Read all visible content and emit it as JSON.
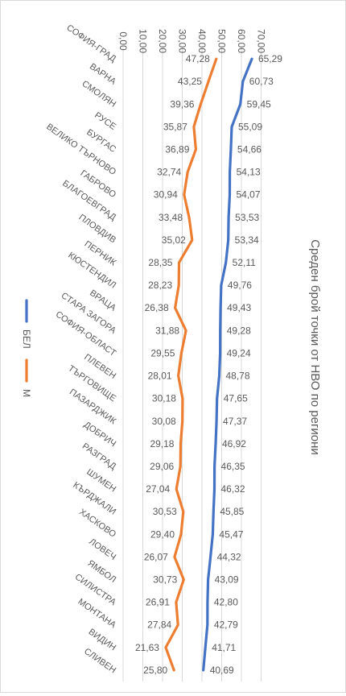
{
  "chart_data": {
    "type": "line",
    "orientation": "rotated-90-clockwise",
    "title": "Среден брой точки от НВО по региони",
    "categories": [
      "СОФИЯ-ГРАД",
      "ВАРНА",
      "СМОЛЯН",
      "РУСЕ",
      "БУРГАС",
      "ВЕЛИКО ТЪРНОВО",
      "ГАБРОВО",
      "БЛАГОЕВГРАД",
      "ПЛОВДИВ",
      "ПЕРНИК",
      "КЮСТЕНДИЛ",
      "ВРАЦА",
      "СТАРА ЗАГОРА",
      "СОФИЯ-ОБЛАСТ",
      "ПЛЕВЕН",
      "ТЪРГОВИЩЕ",
      "ПАЗАРДЖИК",
      "ДОБРИЧ",
      "РАЗГРАД",
      "ШУМЕН",
      "КЪРДЖАЛИ",
      "ХАСКОВО",
      "ЛОВЕЧ",
      "ЯМБОЛ",
      "СИЛИСТРА",
      "МОНТАНА",
      "ВИДИН",
      "СЛИВЕН"
    ],
    "series": [
      {
        "name": "БЕЛ",
        "color": "#4472c4",
        "label_side": "after",
        "values": [
          65.29,
          60.73,
          59.45,
          55.09,
          54.66,
          54.13,
          54.07,
          53.53,
          53.34,
          52.11,
          49.76,
          49.43,
          49.28,
          49.24,
          48.78,
          47.65,
          47.37,
          46.92,
          46.35,
          46.32,
          45.85,
          45.47,
          44.32,
          43.09,
          42.8,
          42.79,
          41.71,
          40.69
        ],
        "labels": [
          "65,29",
          "60,73",
          "59,45",
          "55,09",
          "54,66",
          "54,13",
          "54,07",
          "53,53",
          "53,34",
          "52,11",
          "49,76",
          "49,43",
          "49,28",
          "49,24",
          "48,78",
          "47,65",
          "47,37",
          "46,92",
          "46,35",
          "46,32",
          "45,85",
          "45,47",
          "44,32",
          "43,09",
          "42,80",
          "42,79",
          "41,71",
          "40,69"
        ]
      },
      {
        "name": "М",
        "color": "#ed7d31",
        "label_side": "before",
        "values": [
          47.28,
          43.25,
          39.36,
          35.87,
          36.89,
          32.74,
          30.94,
          33.48,
          35.02,
          28.35,
          28.23,
          26.38,
          31.88,
          29.55,
          28.01,
          30.18,
          30.08,
          29.18,
          29.06,
          27.04,
          30.53,
          29.4,
          26.07,
          30.73,
          26.91,
          27.84,
          21.63,
          25.8
        ],
        "labels": [
          "47,28",
          "43,25",
          "39,36",
          "35,87",
          "36,89",
          "32,74",
          "30,94",
          "33,48",
          "35,02",
          "28,35",
          "28,23",
          "26,38",
          "31,88",
          "29,55",
          "28,01",
          "30,18",
          "30,08",
          "29,18",
          "29,06",
          "27,04",
          "30,53",
          "29,40",
          "26,07",
          "30,73",
          "26,91",
          "27,84",
          "21,63",
          "25,80"
        ]
      }
    ],
    "ylim": [
      0,
      70
    ],
    "ticks": [
      0,
      10,
      20,
      30,
      40,
      50,
      60,
      70
    ],
    "tick_labels": [
      "0,00",
      "10,00",
      "20,00",
      "30,00",
      "40,00",
      "50,00",
      "60,00",
      "70,00"
    ],
    "grid": true,
    "legend_position": "left"
  }
}
